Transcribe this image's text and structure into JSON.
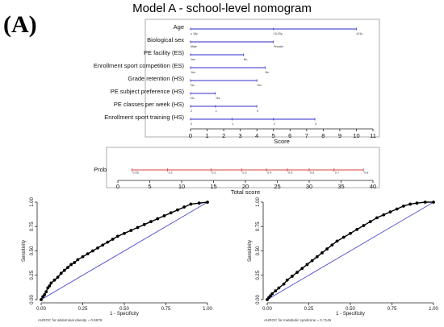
{
  "panel_label": "(A)",
  "title": "Model A - school-level nomogram",
  "chart_data": [
    {
      "type": "nomogram",
      "xlabel": "Score",
      "xlim": [
        0,
        11
      ],
      "ticks": [
        0,
        1,
        2,
        3,
        4,
        5,
        6,
        7,
        8,
        9,
        10,
        11
      ],
      "variables": [
        {
          "name": "Age",
          "start": 0,
          "end": 10,
          "levels": [
            {
              "label": "≤ 18y",
              "score": 0
            },
            {
              "label": "19-20y",
              "score": 5
            },
            {
              "label": "≥21y",
              "score": 10
            }
          ]
        },
        {
          "name": "Biological sex",
          "start": 0,
          "end": 5,
          "levels": [
            {
              "label": "Male",
              "score": 0
            },
            {
              "label": "Female",
              "score": 5
            }
          ]
        },
        {
          "name": "PE facility (ES)",
          "start": 0,
          "end": 3.2,
          "levels": [
            {
              "label": "Yes",
              "score": 0
            },
            {
              "label": "No",
              "score": 3.2
            }
          ]
        },
        {
          "name": "Enrollment sport competition (ES)",
          "start": 0,
          "end": 4.5,
          "levels": [
            {
              "label": "Yes",
              "score": 0
            },
            {
              "label": "No",
              "score": 4.5
            }
          ]
        },
        {
          "name": "Grade retention (HS)",
          "start": 0,
          "end": 4.0,
          "levels": [
            {
              "label": "No",
              "score": 0
            },
            {
              "label": "Yes",
              "score": 4.0
            }
          ]
        },
        {
          "name": "PE subject preference (HS)",
          "start": 0,
          "end": 1.5,
          "levels": [
            {
              "label": "No",
              "score": 0
            },
            {
              "label": "Yes",
              "score": 1.5
            }
          ]
        },
        {
          "name": "PE classes per week (HS)",
          "start": 0,
          "end": 4.0,
          "levels": [
            {
              "label": "0",
              "score": 4.0
            },
            {
              "label": "1",
              "score": 1.5
            },
            {
              "label": "2",
              "score": 0
            }
          ]
        },
        {
          "name": "Enrollment sport training (HS)",
          "start": 0,
          "end": 7.5,
          "levels": [
            {
              "label": "0",
              "score": 0
            },
            {
              "label": "1",
              "score": 2.5
            },
            {
              "label": "2",
              "score": 5.0
            },
            {
              "label": "3",
              "score": 7.5
            }
          ]
        }
      ]
    },
    {
      "type": "nomogram-axis",
      "row_label": "Prob",
      "xlabel": "Total score",
      "xlim": [
        0,
        40
      ],
      "ticks": [
        0,
        5,
        10,
        15,
        20,
        25,
        30,
        35,
        40
      ],
      "prob_ticks": [
        {
          "label": "0.05",
          "score": 2.2
        },
        {
          "label": "0.1",
          "score": 7.8
        },
        {
          "label": "0.2",
          "score": 14.6
        },
        {
          "label": "0.3",
          "score": 19.4
        },
        {
          "label": "0.4",
          "score": 23.3
        },
        {
          "label": "0.5",
          "score": 26.6
        },
        {
          "label": "0.6",
          "score": 30.0
        },
        {
          "label": "0.7",
          "score": 33.9
        },
        {
          "label": "0.8",
          "score": 38.5
        }
      ],
      "line_color": "#d94040"
    },
    {
      "type": "line",
      "name": "roc-left",
      "xlabel": "1 - Specificity",
      "ylabel": "Sensitivity",
      "xlim": [
        0,
        1
      ],
      "ylim": [
        0,
        1
      ],
      "ticks": [
        "0.00",
        "0.25",
        "0.50",
        "0.75",
        "1.00"
      ],
      "caption": "AUROC for abdominal obesity = 0.6978",
      "diagonal_color": "#3b3bd0",
      "points": [
        [
          0.0,
          0.0
        ],
        [
          0.01,
          0.03
        ],
        [
          0.02,
          0.05
        ],
        [
          0.03,
          0.08
        ],
        [
          0.04,
          0.12
        ],
        [
          0.05,
          0.14
        ],
        [
          0.06,
          0.17
        ],
        [
          0.08,
          0.2
        ],
        [
          0.1,
          0.23
        ],
        [
          0.12,
          0.27
        ],
        [
          0.14,
          0.3
        ],
        [
          0.16,
          0.33
        ],
        [
          0.18,
          0.36
        ],
        [
          0.2,
          0.38
        ],
        [
          0.22,
          0.41
        ],
        [
          0.25,
          0.44
        ],
        [
          0.28,
          0.47
        ],
        [
          0.31,
          0.5
        ],
        [
          0.34,
          0.53
        ],
        [
          0.37,
          0.56
        ],
        [
          0.4,
          0.59
        ],
        [
          0.43,
          0.62
        ],
        [
          0.46,
          0.65
        ],
        [
          0.5,
          0.68
        ],
        [
          0.54,
          0.71
        ],
        [
          0.58,
          0.74
        ],
        [
          0.62,
          0.77
        ],
        [
          0.66,
          0.8
        ],
        [
          0.7,
          0.83
        ],
        [
          0.74,
          0.86
        ],
        [
          0.78,
          0.89
        ],
        [
          0.82,
          0.92
        ],
        [
          0.86,
          0.95
        ],
        [
          0.9,
          0.98
        ],
        [
          0.95,
          0.99
        ],
        [
          1.0,
          1.0
        ]
      ]
    },
    {
      "type": "line",
      "name": "roc-right",
      "xlabel": "1 - Specificity",
      "ylabel": "Sensitivity",
      "xlim": [
        0,
        1
      ],
      "ylim": [
        0,
        1
      ],
      "ticks": [
        "0.00",
        "0.25",
        "0.50",
        "0.75",
        "1.00"
      ],
      "caption": "AUROC for metabolic syndrome = 0.7146",
      "diagonal_color": "#3b3bd0",
      "points": [
        [
          0.0,
          0.0
        ],
        [
          0.01,
          0.02
        ],
        [
          0.02,
          0.04
        ],
        [
          0.03,
          0.06
        ],
        [
          0.05,
          0.09
        ],
        [
          0.07,
          0.12
        ],
        [
          0.1,
          0.16
        ],
        [
          0.12,
          0.2
        ],
        [
          0.15,
          0.24
        ],
        [
          0.18,
          0.28
        ],
        [
          0.21,
          0.32
        ],
        [
          0.24,
          0.36
        ],
        [
          0.27,
          0.4
        ],
        [
          0.3,
          0.44
        ],
        [
          0.33,
          0.48
        ],
        [
          0.36,
          0.52
        ],
        [
          0.39,
          0.56
        ],
        [
          0.42,
          0.6
        ],
        [
          0.46,
          0.64
        ],
        [
          0.5,
          0.68
        ],
        [
          0.54,
          0.72
        ],
        [
          0.58,
          0.76
        ],
        [
          0.62,
          0.8
        ],
        [
          0.66,
          0.84
        ],
        [
          0.7,
          0.87
        ],
        [
          0.74,
          0.9
        ],
        [
          0.78,
          0.93
        ],
        [
          0.82,
          0.96
        ],
        [
          0.86,
          0.98
        ],
        [
          0.9,
          0.99
        ],
        [
          0.95,
          1.0
        ],
        [
          1.0,
          1.0
        ]
      ]
    }
  ]
}
